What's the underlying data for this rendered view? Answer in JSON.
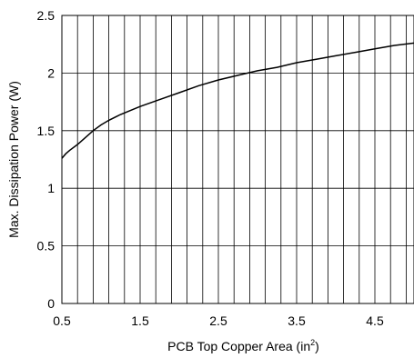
{
  "chart_data": {
    "type": "line",
    "title": "",
    "xlabel": "PCB Top Copper Area (in",
    "xlabel_sup": "2",
    "xlabel_suffix": ")",
    "ylabel": "Max. Dissipation Power (W)",
    "xlim": [
      0.5,
      5.0
    ],
    "ylim": [
      0,
      2.5
    ],
    "x_ticks": [
      0.5,
      1.5,
      2.5,
      3.5,
      4.5
    ],
    "x_tick_labels": [
      "0.5",
      "1.5",
      "2.5",
      "3.5",
      "4.5"
    ],
    "x_minor_step": 0.2,
    "y_ticks": [
      0,
      0.5,
      1,
      1.5,
      2,
      2.5
    ],
    "y_tick_labels": [
      "0",
      "0.5",
      "1",
      "1.5",
      "2",
      "2.5"
    ],
    "grid": true,
    "series": [
      {
        "color": "#000000",
        "x": [
          0.5,
          0.55,
          0.6,
          0.7,
          0.8,
          0.9,
          1.0,
          1.1,
          1.25,
          1.5,
          1.75,
          2.0,
          2.25,
          2.5,
          2.75,
          3.0,
          3.25,
          3.5,
          3.75,
          4.0,
          4.25,
          4.5,
          4.75,
          5.0
        ],
        "y": [
          1.26,
          1.3,
          1.33,
          1.38,
          1.44,
          1.5,
          1.55,
          1.59,
          1.64,
          1.71,
          1.77,
          1.83,
          1.89,
          1.94,
          1.98,
          2.02,
          2.05,
          2.09,
          2.12,
          2.15,
          2.18,
          2.21,
          2.24,
          2.26
        ]
      }
    ]
  }
}
